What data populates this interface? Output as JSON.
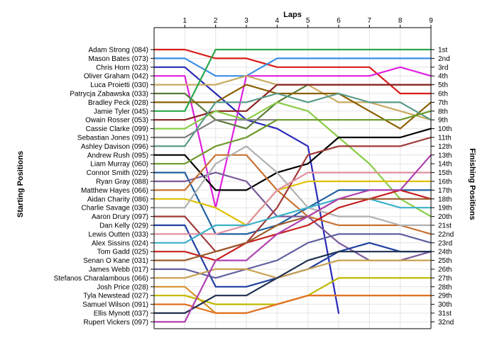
{
  "chart_data": {
    "type": "line",
    "title": "",
    "x_axis_title": "Laps",
    "left_axis_title": "Starting Positions",
    "right_axis_title": "Finishing Positions",
    "laps": [
      1,
      2,
      3,
      4,
      5,
      6,
      7,
      8,
      9
    ],
    "x_range": [
      0,
      9
    ],
    "y_range": [
      1,
      32
    ],
    "grid": true,
    "start_labels": [
      "Adam Strong (084)",
      "Mason Bates (073)",
      "Chris Horn (023)",
      "Oliver Graham (042)",
      "Luca Proietti (030)",
      "Patrycja Zabawska (033)",
      "Bradley Peck (028)",
      "Jamie Tyler (045)",
      "Owain Rosser (053)",
      "Cassie Clarke (099)",
      "Sebastian Jones (091)",
      "Ashley Davison (096)",
      "Andrew Rush (095)",
      "Liam Murray (060)",
      "Connor Smith (029)",
      "Ryan Gray (088)",
      "Matthew Hayes (066)",
      "Aidan Charity (086)",
      "Charlie Savage (030)",
      "Aaron Drury (097)",
      "Dan Kelly (029)",
      "Lewis Outten (033)",
      "Alex Sissins (024)",
      "Tom Gadd (025)",
      "Senan O Kane (031)",
      "James Webb (017)",
      "Stefanos Charalambous (066)",
      "Josh Price (028)",
      "Tyla Newstead (027)",
      "Samuel Wilson (091)",
      "Ellis Mynott (037)",
      "Rupert Vickers (097)"
    ],
    "finish_labels": [
      "1st",
      "2nd",
      "3rd",
      "4th",
      "5th",
      "6th",
      "7th",
      "8th",
      "9th",
      "10th",
      "11th",
      "12th",
      "13th",
      "14th",
      "15th",
      "16th",
      "17th",
      "18th",
      "19th",
      "20th",
      "21st",
      "22nd",
      "23rd",
      "24th",
      "25th",
      "26th",
      "27th",
      "28th",
      "29th",
      "30th",
      "31st",
      "32nd"
    ],
    "series": [
      {
        "color": "#d81b1b",
        "positions": [
          1,
          2,
          2,
          3,
          3,
          3,
          3,
          6,
          6
        ]
      },
      {
        "color": "#3a8ee6",
        "positions": [
          2,
          4,
          4,
          2,
          2,
          2,
          2,
          2,
          2
        ]
      },
      {
        "color": "#2a2ab8",
        "positions": [
          3,
          6,
          9,
          10,
          12,
          31
        ]
      },
      {
        "color": "#e020e0",
        "positions": [
          4,
          19,
          4,
          4,
          4,
          4,
          4,
          3,
          4
        ]
      },
      {
        "color": "#c8aa60",
        "positions": [
          5,
          5,
          4,
          5,
          5,
          7,
          7,
          8,
          9
        ]
      },
      {
        "color": "#5a7a3a",
        "positions": [
          6,
          9,
          10,
          7,
          5,
          5,
          5,
          5,
          5
        ]
      },
      {
        "color": "#8a6000",
        "positions": [
          7,
          7,
          5,
          6,
          6,
          6,
          8,
          10,
          7
        ]
      },
      {
        "color": "#2aa84a",
        "positions": [
          8,
          1,
          1,
          1,
          1,
          1,
          1,
          1,
          1
        ]
      },
      {
        "color": "#8a2020",
        "positions": [
          9,
          8,
          8,
          5,
          5,
          5,
          5,
          5,
          5
        ]
      },
      {
        "color": "#88cc44",
        "positions": [
          10,
          8,
          9,
          7,
          8,
          11,
          14,
          18,
          20
        ]
      },
      {
        "color": "#808080",
        "positions": [
          11,
          9,
          9,
          9
        ]
      },
      {
        "color": "#5a9a8a",
        "positions": [
          12,
          7,
          7,
          6,
          7,
          6,
          7,
          7,
          9
        ]
      },
      {
        "color": "#000000",
        "positions": [
          13,
          17,
          17,
          15,
          14,
          11,
          11,
          11,
          10
        ]
      },
      {
        "color": "#6a9a2a",
        "positions": [
          14,
          12,
          11,
          9,
          9,
          9,
          9,
          9,
          8
        ]
      },
      {
        "color": "#2060a0",
        "positions": [
          15,
          22,
          22,
          21,
          19,
          17,
          17,
          17,
          17
        ]
      },
      {
        "color": "#7a5a9a",
        "positions": [
          16,
          15,
          16,
          20,
          20,
          23,
          25,
          25,
          24
        ]
      },
      {
        "color": "#c87030",
        "positions": [
          17,
          13,
          13,
          17,
          20,
          21,
          21,
          21,
          22
        ]
      },
      {
        "color": "#e0c000",
        "positions": [
          18,
          19,
          21,
          17,
          16,
          16,
          16,
          16,
          16
        ]
      },
      {
        "color": "#b0b0b0",
        "positions": [
          19,
          14,
          12,
          15,
          19,
          20,
          20,
          21,
          21
        ]
      },
      {
        "color": "#a03a3a",
        "positions": [
          20,
          24,
          23,
          19,
          13,
          12,
          12,
          12,
          11
        ]
      },
      {
        "color": "#2040a0",
        "positions": [
          21,
          28,
          28,
          27,
          26,
          24,
          23,
          24,
          24
        ]
      },
      {
        "color": "#e090a0",
        "positions": [
          22,
          22,
          21,
          17,
          15,
          15,
          15,
          15,
          15
        ]
      },
      {
        "color": "#3ab0c8",
        "positions": [
          23,
          21,
          21,
          20,
          19,
          18,
          18,
          19,
          19
        ]
      },
      {
        "color": "#c82020",
        "positions": [
          24,
          25,
          23,
          22,
          21,
          19,
          18,
          17,
          18
        ]
      },
      {
        "color": "#9a5a2a",
        "positions": [
          25,
          24,
          23,
          21,
          20,
          18,
          18,
          18,
          18
        ]
      },
      {
        "color": "#6060a0",
        "positions": [
          26,
          27,
          26,
          25,
          23,
          22,
          22,
          22,
          23
        ]
      },
      {
        "color": "#c8a050",
        "positions": [
          27,
          26,
          26,
          27,
          26,
          25,
          25,
          25,
          25
        ]
      },
      {
        "color": "#d89030",
        "positions": [
          28,
          31,
          31,
          30,
          29,
          29,
          29,
          29,
          29
        ]
      },
      {
        "color": "#c0b800",
        "positions": [
          29,
          30,
          30,
          30,
          29,
          27,
          27,
          27,
          27
        ]
      },
      {
        "color": "#e07020",
        "positions": [
          30,
          31,
          31,
          30,
          29,
          29,
          29,
          29,
          29
        ]
      },
      {
        "color": "#203050",
        "positions": [
          31,
          29,
          29,
          27,
          25,
          24,
          24,
          24,
          24
        ]
      },
      {
        "color": "#b040b0",
        "positions": [
          32,
          25,
          25,
          22,
          20,
          18,
          17,
          17,
          13
        ]
      }
    ]
  }
}
